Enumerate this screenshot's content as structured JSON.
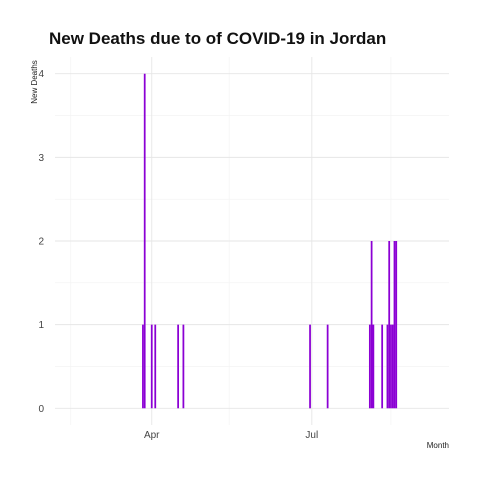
{
  "chart_data": {
    "type": "bar",
    "title": "New Deaths due to of COVID-19 in Jordan",
    "xlabel": "Month",
    "ylabel": "New Deaths",
    "x_tick_labels": [
      {
        "date": "2020-04-01",
        "label": "Apr"
      },
      {
        "date": "2020-07-01",
        "label": "Jul"
      }
    ],
    "x_minor_ticks": [
      "2020-02-15",
      "2020-05-15",
      "2020-08-15"
    ],
    "xlim": [
      "2020-02-06",
      "2020-09-17"
    ],
    "ylim": [
      -0.2,
      4.2
    ],
    "y_ticks": [
      0,
      1,
      2,
      3,
      4
    ],
    "grid": true,
    "bar_color": "#8B00D4",
    "series": [
      {
        "points": [
          {
            "date": "2020-03-27",
            "value": 1
          },
          {
            "date": "2020-03-28",
            "value": 4
          },
          {
            "date": "2020-04-01",
            "value": 1
          },
          {
            "date": "2020-04-03",
            "value": 1
          },
          {
            "date": "2020-04-16",
            "value": 1
          },
          {
            "date": "2020-04-19",
            "value": 1
          },
          {
            "date": "2020-06-30",
            "value": 1
          },
          {
            "date": "2020-07-10",
            "value": 1
          },
          {
            "date": "2020-08-03",
            "value": 1
          },
          {
            "date": "2020-08-04",
            "value": 2
          },
          {
            "date": "2020-08-05",
            "value": 1
          },
          {
            "date": "2020-08-10",
            "value": 1
          },
          {
            "date": "2020-08-13",
            "value": 1
          },
          {
            "date": "2020-08-14",
            "value": 2
          },
          {
            "date": "2020-08-15",
            "value": 1
          },
          {
            "date": "2020-08-16",
            "value": 1
          },
          {
            "date": "2020-08-17",
            "value": 2
          },
          {
            "date": "2020-08-18",
            "value": 2
          }
        ]
      }
    ]
  }
}
